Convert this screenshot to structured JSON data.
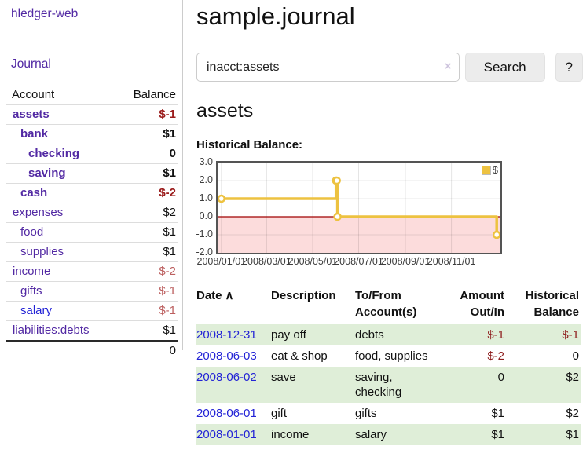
{
  "app": {
    "title": "hledger-web",
    "nav_journal": "Journal"
  },
  "colors": {
    "purple": "#5229a3",
    "blue": "#2323d6",
    "negstrong": "#9b1c1c",
    "neg": "#bc5f5f",
    "tableneg": "#8f1f1f",
    "stripe": "#dfeed8",
    "btnbg": "#ececec",
    "divider": "#cccccc",
    "rowline": "#dddddd",
    "chartborder": "#545454",
    "clearx": "#cdc3dd"
  },
  "sidebar": {
    "table_headers": {
      "account": "Account",
      "balance": "Balance"
    },
    "accounts": [
      {
        "name": "assets",
        "balance": "$-1",
        "depth": 0,
        "strong": true,
        "link": "purple",
        "balance_tone": "neg-strong"
      },
      {
        "name": "bank",
        "balance": "$1",
        "depth": 1,
        "strong": true,
        "link": "purple",
        "balance_tone": "pos"
      },
      {
        "name": "checking",
        "balance": "0",
        "depth": 2,
        "strong": true,
        "link": "purple",
        "balance_tone": "pos"
      },
      {
        "name": "saving",
        "balance": "$1",
        "depth": 2,
        "strong": true,
        "link": "purple",
        "balance_tone": "pos"
      },
      {
        "name": "cash",
        "balance": "$-2",
        "depth": 1,
        "strong": true,
        "link": "purple",
        "balance_tone": "neg-strong"
      },
      {
        "name": "expenses",
        "balance": "$2",
        "depth": 0,
        "strong": false,
        "link": "purple",
        "balance_tone": "pos"
      },
      {
        "name": "food",
        "balance": "$1",
        "depth": 1,
        "strong": false,
        "link": "purple",
        "balance_tone": "pos"
      },
      {
        "name": "supplies",
        "balance": "$1",
        "depth": 1,
        "strong": false,
        "link": "purple",
        "balance_tone": "pos"
      },
      {
        "name": "income",
        "balance": "$-2",
        "depth": 0,
        "strong": false,
        "link": "purple",
        "balance_tone": "neg"
      },
      {
        "name": "gifts",
        "balance": "$-1",
        "depth": 1,
        "strong": false,
        "link": "purple",
        "balance_tone": "neg"
      },
      {
        "name": "salary",
        "balance": "$-1",
        "depth": 1,
        "strong": false,
        "link": "blue",
        "balance_tone": "neg"
      },
      {
        "name": "liabilities:debts",
        "balance": "$1",
        "depth": 0,
        "strong": false,
        "link": "purple",
        "balance_tone": "pos"
      }
    ],
    "total": "0"
  },
  "header": {
    "page_title": "sample.journal"
  },
  "search": {
    "value": "inacct:assets",
    "clear_icon": "×",
    "button": "Search",
    "help_button": "?"
  },
  "account_page": {
    "heading": "assets",
    "chart_label": "Historical Balance:"
  },
  "chart_data": {
    "type": "line",
    "step": true,
    "title": "Historical Balance:",
    "legend": [
      {
        "label": "$",
        "color": "#EDC240"
      }
    ],
    "legend_position": "top-right",
    "grid": true,
    "series": [
      {
        "name": "$",
        "color": "#EDC240",
        "points": [
          {
            "date": "2008-01-01",
            "day": 0,
            "value": 1
          },
          {
            "date": "2008-06-01",
            "day": 152,
            "value": 2
          },
          {
            "date": "2008-06-02",
            "day": 153,
            "value": 2
          },
          {
            "date": "2008-06-03",
            "day": 154,
            "value": 0
          },
          {
            "date": "2008-12-31",
            "day": 365,
            "value": -1
          }
        ]
      }
    ],
    "x_ticks": [
      {
        "label": "2008/01/01",
        "day": 0
      },
      {
        "label": "2008/03/01",
        "day": 60
      },
      {
        "label": "2008/05/01",
        "day": 121
      },
      {
        "label": "2008/07/01",
        "day": 182
      },
      {
        "label": "2008/09/01",
        "day": 244
      },
      {
        "label": "2008/11/01",
        "day": 305
      }
    ],
    "y_ticks": [
      "3.0",
      "2.0",
      "1.0",
      "0.0",
      "-1.0",
      "-2.0"
    ],
    "xlim_days": [
      -5,
      370
    ],
    "ylim": [
      -2,
      3
    ],
    "negative_region_color": "#fcdcdc",
    "zero_line_color": "#a00000",
    "marker": {
      "fill": "#ffffff",
      "radius": 4
    }
  },
  "register": {
    "columns": {
      "date": "Date",
      "sort_indicator": "∧",
      "description": "Description",
      "account_line1": "To/From",
      "account_line2": "Account(s)",
      "amount_line1": "Amount",
      "amount_line2": "Out/In",
      "balance_line1": "Historical",
      "balance_line2": "Balance"
    },
    "rows": [
      {
        "date": "2008-12-31",
        "description": "pay off",
        "accounts": "debts",
        "amount": "$-1",
        "balance": "$-1"
      },
      {
        "date": "2008-06-03",
        "description": "eat & shop",
        "accounts": "food, supplies",
        "amount": "$-2",
        "balance": "0"
      },
      {
        "date": "2008-06-02",
        "description": "save",
        "accounts": "saving, checking",
        "amount": "0",
        "balance": "$2"
      },
      {
        "date": "2008-06-01",
        "description": "gift",
        "accounts": "gifts",
        "amount": "$1",
        "balance": "$2"
      },
      {
        "date": "2008-01-01",
        "description": "income",
        "accounts": "salary",
        "amount": "$1",
        "balance": "$1"
      }
    ]
  }
}
